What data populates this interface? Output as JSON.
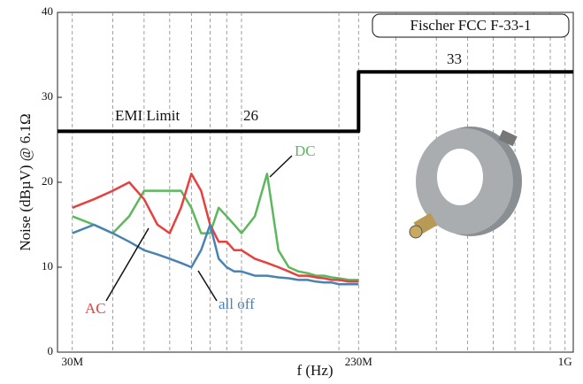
{
  "chart_data": {
    "type": "line",
    "title": "Fischer FCC F-33-1",
    "xlabel": "f (Hz)",
    "ylabel": "Noise (dBµV) @ 6.1Ω",
    "xscale": "log",
    "xlim": [
      27000000,
      1060000000
    ],
    "ylim": [
      0,
      40
    ],
    "xticks": [
      {
        "value": 30000000,
        "label": "30M"
      },
      {
        "value": 230000000,
        "label": "230M"
      },
      {
        "value": 1000000000,
        "label": "1G"
      }
    ],
    "yticks": [
      0,
      10,
      20,
      30,
      40
    ],
    "xgrid": [
      40000000,
      50000000,
      60000000,
      70000000,
      80000000,
      90000000,
      100000000,
      200000000,
      300000000,
      400000000,
      500000000,
      600000000,
      700000000,
      800000000,
      900000000
    ],
    "x": [
      30000000,
      35000000,
      40000000,
      45000000,
      50000000,
      55000000,
      60000000,
      65000000,
      70000000,
      75000000,
      80000000,
      85000000,
      90000000,
      95000000,
      100000000,
      110000000,
      120000000,
      130000000,
      140000000,
      150000000,
      160000000,
      170000000,
      180000000,
      190000000,
      200000000,
      215000000,
      230000000
    ],
    "series": [
      {
        "name": "DC",
        "color": "#5cb85c",
        "values": [
          16,
          15,
          14,
          16,
          19,
          19,
          19,
          19,
          17,
          14,
          14,
          17,
          16,
          15,
          14,
          16,
          21,
          12,
          10,
          9.5,
          9.3,
          9,
          9,
          8.8,
          8.7,
          8.5,
          8.5
        ]
      },
      {
        "name": "AC",
        "color": "#e8403f",
        "values": [
          17,
          18,
          19,
          20,
          18,
          15,
          14,
          17,
          21,
          19,
          15,
          13,
          13,
          12,
          12,
          11,
          10.5,
          10,
          9.5,
          9,
          9,
          8.8,
          8.7,
          8.5,
          8.5,
          8.3,
          8.3
        ]
      },
      {
        "name": "all off",
        "color": "#4a82b4",
        "values": [
          14,
          15,
          14,
          13,
          12,
          11.5,
          11,
          10.5,
          10,
          12,
          15,
          11,
          10,
          9.5,
          9.5,
          9,
          9,
          8.8,
          8.7,
          8.5,
          8.5,
          8.3,
          8.2,
          8.2,
          8,
          8,
          8
        ]
      }
    ],
    "limit": {
      "name": "EMI Limit",
      "color": "#000000",
      "x": [
        27000000,
        230000000,
        230000000,
        1060000000
      ],
      "values": [
        26,
        26,
        33,
        33
      ]
    }
  }
}
